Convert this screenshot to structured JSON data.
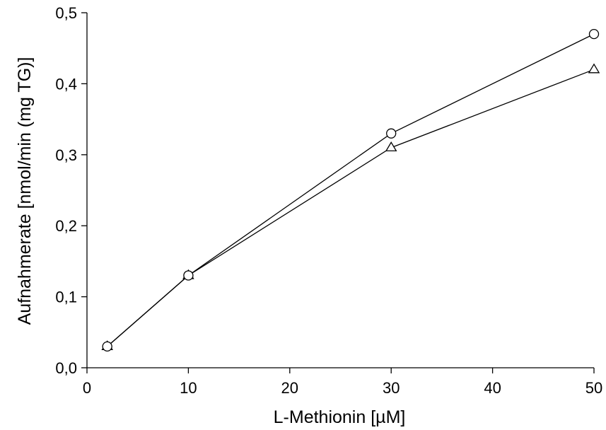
{
  "chart_data": {
    "type": "line",
    "xlabel": "L-Methionin [µM]",
    "ylabel": "Aufnahmerate [nmol/min (mg TG)]",
    "xlim": [
      0,
      50
    ],
    "ylim": [
      0,
      0.5
    ],
    "x_ticks": [
      0,
      10,
      20,
      30,
      40,
      50
    ],
    "x_tick_labels": [
      "0",
      "10",
      "20",
      "30",
      "40",
      "50"
    ],
    "y_ticks": [
      0,
      0.1,
      0.2,
      0.3,
      0.4,
      0.5
    ],
    "y_tick_labels": [
      "0,0",
      "0,1",
      "0,2",
      "0,3",
      "0,4",
      "0,5"
    ],
    "grid": false,
    "series": [
      {
        "marker": "circle",
        "x": [
          2,
          10,
          30,
          50
        ],
        "y": [
          0.03,
          0.13,
          0.33,
          0.47
        ]
      },
      {
        "marker": "triangle",
        "x": [
          2,
          10,
          30,
          50
        ],
        "y": [
          0.03,
          0.13,
          0.31,
          0.42
        ]
      }
    ],
    "colors": {
      "line": "#000000",
      "marker_fill": "#ffffff"
    }
  }
}
